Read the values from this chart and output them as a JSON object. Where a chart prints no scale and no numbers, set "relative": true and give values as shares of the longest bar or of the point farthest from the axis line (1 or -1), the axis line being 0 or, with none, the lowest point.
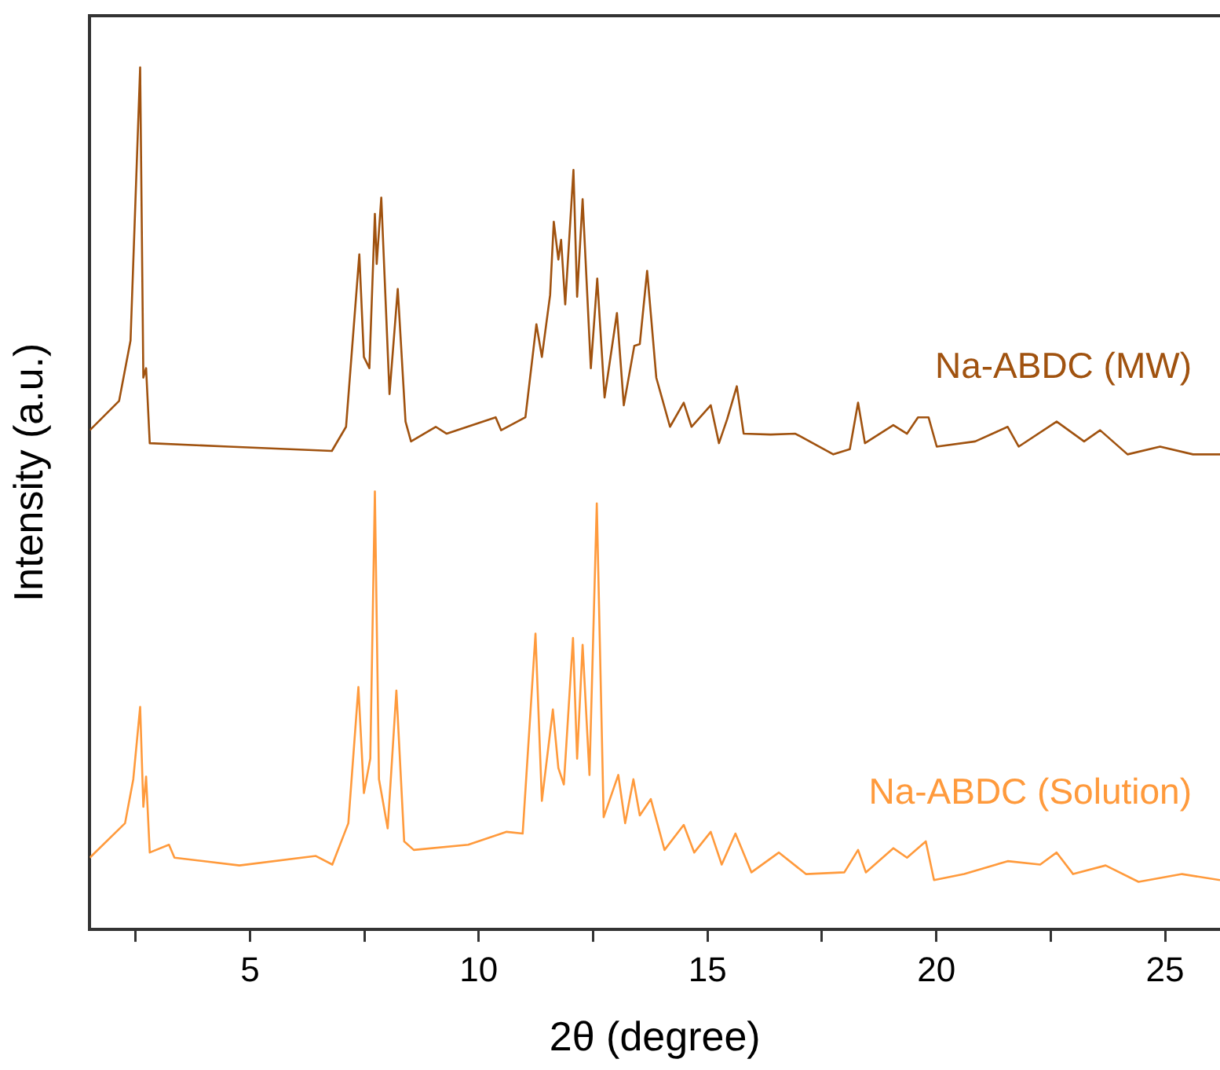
{
  "chart_data": {
    "type": "line",
    "xlabel": "2θ (degree)",
    "ylabel": "Intensity (a.u.)",
    "relative": true,
    "xlim": [
      1.5,
      26.2
    ],
    "xticks": [
      {
        "value": 2.5,
        "label": null
      },
      5,
      {
        "value": 7.5,
        "label": null
      },
      10,
      {
        "value": 12.5,
        "label": null
      },
      15,
      {
        "value": 17.5,
        "label": null
      },
      20,
      {
        "value": 22.5,
        "label": null
      },
      25
    ],
    "grid": false,
    "legend": false,
    "marker": "none",
    "line_style": "solid",
    "series": [
      {
        "name": "Na-ABDC (MW)",
        "color": "#a0520f",
        "x": [
          1.5,
          2.14,
          2.39,
          2.6,
          2.67,
          2.73,
          2.81,
          4.54,
          6.79,
          7.1,
          7.39,
          7.49,
          7.61,
          7.73,
          7.77,
          7.87,
          8.05,
          8.23,
          8.4,
          8.52,
          9.06,
          9.3,
          10.37,
          10.49,
          11.02,
          11.26,
          11.38,
          11.56,
          11.64,
          11.74,
          11.8,
          11.89,
          12.07,
          12.15,
          12.27,
          12.45,
          12.59,
          12.75,
          13.02,
          13.17,
          13.4,
          13.52,
          13.68,
          13.88,
          14.18,
          14.48,
          14.65,
          15.07,
          15.25,
          15.43,
          15.64,
          15.79,
          16.38,
          16.92,
          17.75,
          18.11,
          18.29,
          18.44,
          19.06,
          19.36,
          19.6,
          19.83,
          20.01,
          20.85,
          21.56,
          21.8,
          22.63,
          23.23,
          23.58,
          24.18,
          24.89,
          25.61,
          26.2
        ],
        "values": [
          0.579,
          0.613,
          0.683,
          1.0,
          0.64,
          0.651,
          0.564,
          0.56,
          0.555,
          0.583,
          0.783,
          0.664,
          0.651,
          0.83,
          0.772,
          0.849,
          0.621,
          0.743,
          0.589,
          0.566,
          0.583,
          0.575,
          0.594,
          0.579,
          0.594,
          0.702,
          0.664,
          0.736,
          0.821,
          0.777,
          0.8,
          0.725,
          0.881,
          0.734,
          0.847,
          0.651,
          0.755,
          0.617,
          0.715,
          0.608,
          0.677,
          0.679,
          0.764,
          0.64,
          0.583,
          0.611,
          0.583,
          0.608,
          0.564,
          0.592,
          0.63,
          0.575,
          0.574,
          0.575,
          0.551,
          0.557,
          0.611,
          0.564,
          0.585,
          0.575,
          0.594,
          0.594,
          0.56,
          0.566,
          0.583,
          0.56,
          0.589,
          0.566,
          0.579,
          0.551,
          0.56,
          0.551,
          0.551
        ]
      },
      {
        "name": "Na-ABDC (Solution)",
        "color": "#ff9a3c",
        "x": [
          1.5,
          2.27,
          2.45,
          2.6,
          2.67,
          2.73,
          2.81,
          3.23,
          3.35,
          4.77,
          6.44,
          6.8,
          7.15,
          7.37,
          7.49,
          7.63,
          7.73,
          7.82,
          8.01,
          8.2,
          8.37,
          8.58,
          9.77,
          10.61,
          10.96,
          11.24,
          11.38,
          11.62,
          11.74,
          11.86,
          12.06,
          12.15,
          12.27,
          12.42,
          12.58,
          12.73,
          13.05,
          13.2,
          13.38,
          13.52,
          13.76,
          14.06,
          14.48,
          14.71,
          15.07,
          15.31,
          15.61,
          15.96,
          16.56,
          17.15,
          17.99,
          18.29,
          18.46,
          19.06,
          19.36,
          19.77,
          19.95,
          20.61,
          21.56,
          22.27,
          22.63,
          22.99,
          23.7,
          24.42,
          25.37,
          26.2
        ],
        "values": [
          0.083,
          0.123,
          0.174,
          0.258,
          0.142,
          0.177,
          0.089,
          0.098,
          0.083,
          0.074,
          0.085,
          0.075,
          0.123,
          0.281,
          0.158,
          0.198,
          0.508,
          0.174,
          0.117,
          0.277,
          0.102,
          0.092,
          0.098,
          0.113,
          0.111,
          0.343,
          0.149,
          0.255,
          0.187,
          0.168,
          0.338,
          0.198,
          0.33,
          0.179,
          0.494,
          0.13,
          0.179,
          0.123,
          0.174,
          0.132,
          0.151,
          0.092,
          0.121,
          0.089,
          0.113,
          0.075,
          0.111,
          0.066,
          0.089,
          0.064,
          0.066,
          0.092,
          0.066,
          0.094,
          0.083,
          0.102,
          0.057,
          0.064,
          0.079,
          0.075,
          0.089,
          0.064,
          0.074,
          0.055,
          0.064,
          0.057
        ]
      }
    ]
  }
}
